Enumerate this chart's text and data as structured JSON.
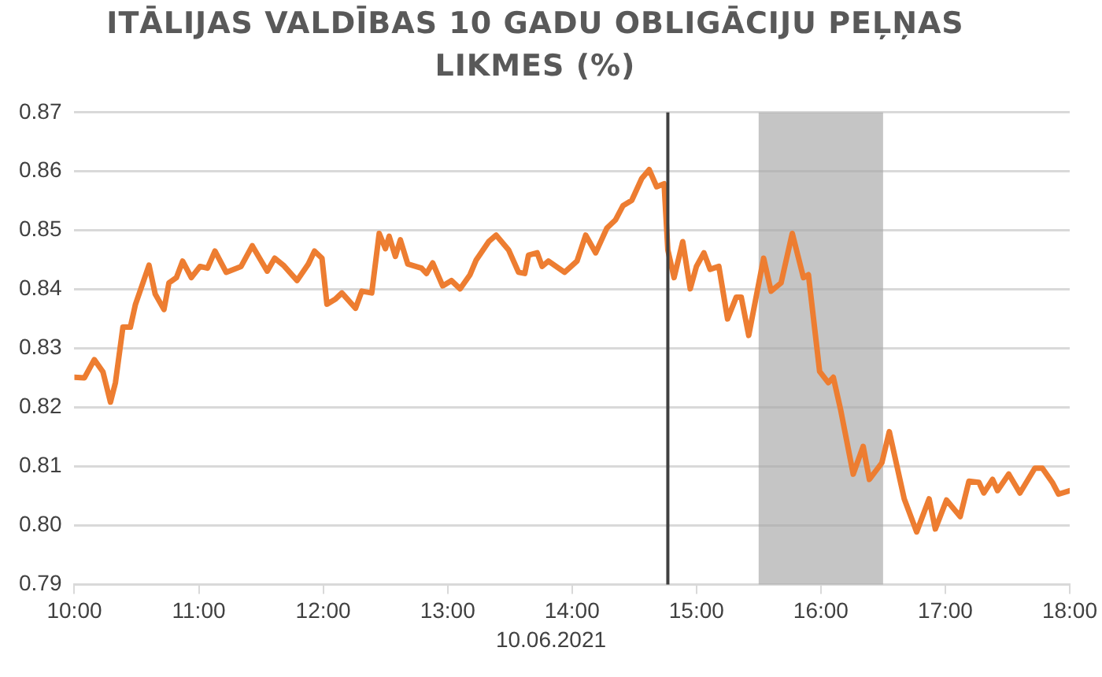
{
  "chart_data": {
    "type": "line",
    "title": "ITĀLIJAS VALDĪBAS 10 GADU OBLIGĀCIJU PEĻŅAS LIKMES (%)",
    "xlabel": "10.06.2021",
    "x": [
      10.0,
      10.08,
      10.16,
      10.23,
      10.29,
      10.33,
      10.39,
      10.45,
      10.49,
      10.6,
      10.65,
      10.72,
      10.76,
      10.82,
      10.87,
      10.94,
      11.01,
      11.07,
      11.13,
      11.22,
      11.34,
      11.43,
      11.55,
      11.61,
      11.68,
      11.79,
      11.88,
      11.93,
      11.99,
      12.03,
      12.1,
      12.15,
      12.26,
      12.31,
      12.39,
      12.45,
      12.5,
      12.53,
      12.58,
      12.62,
      12.68,
      12.79,
      12.83,
      12.88,
      12.96,
      13.03,
      13.1,
      13.18,
      13.23,
      13.33,
      13.39,
      13.49,
      13.57,
      13.62,
      13.65,
      13.72,
      13.76,
      13.81,
      13.94,
      14.04,
      14.11,
      14.19,
      14.28,
      14.35,
      14.41,
      14.48,
      14.56,
      14.62,
      14.68,
      14.74,
      14.77,
      14.82,
      14.89,
      14.95,
      15.0,
      15.06,
      15.11,
      15.18,
      15.25,
      15.32,
      15.36,
      15.42,
      15.54,
      15.6,
      15.68,
      15.77,
      15.86,
      15.9,
      15.99,
      16.06,
      16.1,
      16.16,
      16.26,
      16.34,
      16.39,
      16.49,
      16.55,
      16.67,
      16.77,
      16.87,
      16.92,
      17.01,
      17.12,
      17.19,
      17.27,
      17.31,
      17.38,
      17.42,
      17.51,
      17.6,
      17.72,
      17.78,
      17.86,
      17.91,
      18.0
    ],
    "series": [
      {
        "color": "#ed7d31",
        "values": [
          0.8251,
          0.825,
          0.8281,
          0.826,
          0.8209,
          0.8242,
          0.8336,
          0.8336,
          0.8374,
          0.8441,
          0.8392,
          0.8366,
          0.8411,
          0.842,
          0.8448,
          0.842,
          0.8439,
          0.8436,
          0.8465,
          0.8429,
          0.8439,
          0.8474,
          0.8431,
          0.8453,
          0.8441,
          0.8415,
          0.8443,
          0.8465,
          0.8453,
          0.8375,
          0.8384,
          0.8394,
          0.8368,
          0.8397,
          0.8394,
          0.8495,
          0.8469,
          0.849,
          0.8456,
          0.8484,
          0.8443,
          0.8436,
          0.8427,
          0.8445,
          0.8406,
          0.8415,
          0.8401,
          0.8425,
          0.845,
          0.8481,
          0.8492,
          0.8467,
          0.8429,
          0.8427,
          0.8458,
          0.8462,
          0.8439,
          0.8448,
          0.8429,
          0.8448,
          0.8492,
          0.8462,
          0.8504,
          0.8518,
          0.8542,
          0.8551,
          0.8588,
          0.8603,
          0.8574,
          0.8579,
          0.8467,
          0.842,
          0.8481,
          0.8401,
          0.8439,
          0.8462,
          0.8434,
          0.8439,
          0.835,
          0.8387,
          0.8387,
          0.8322,
          0.8453,
          0.8397,
          0.8411,
          0.8495,
          0.842,
          0.8425,
          0.8261,
          0.8242,
          0.8251,
          0.8195,
          0.8087,
          0.8134,
          0.8078,
          0.8106,
          0.8159,
          0.8045,
          0.7989,
          0.8045,
          0.7994,
          0.8043,
          0.8015,
          0.8075,
          0.8073,
          0.8055,
          0.8078,
          0.8059,
          0.8087,
          0.8055,
          0.8097,
          0.8097,
          0.8073,
          0.8053,
          0.8059
        ]
      }
    ],
    "xlim": [
      10,
      18
    ],
    "xticks": [
      {
        "value": 10,
        "label": "10:00"
      },
      {
        "value": 11,
        "label": "11:00"
      },
      {
        "value": 12,
        "label": "12:00"
      },
      {
        "value": 13,
        "label": "13:00"
      },
      {
        "value": 14,
        "label": "14:00"
      },
      {
        "value": 15,
        "label": "15:00"
      },
      {
        "value": 16,
        "label": "16:00"
      },
      {
        "value": 17,
        "label": "17:00"
      },
      {
        "value": 18,
        "label": "18:00"
      }
    ],
    "ylim": [
      0.79,
      0.87
    ],
    "yticks": [
      0.79,
      {
        "value": 0.8,
        "label": "0.80"
      },
      0.81,
      0.82,
      0.83,
      0.84,
      0.85,
      0.86,
      0.87
    ],
    "ref_lines": [
      {
        "axis": "x",
        "value": 14.77,
        "color": "#404040"
      }
    ],
    "bands": [
      {
        "axis": "x",
        "from": 15.5,
        "to": 16.5,
        "color": "#a6a6a6"
      }
    ],
    "grid": "y",
    "legend": false,
    "marker": "none",
    "line_style": "solid"
  }
}
